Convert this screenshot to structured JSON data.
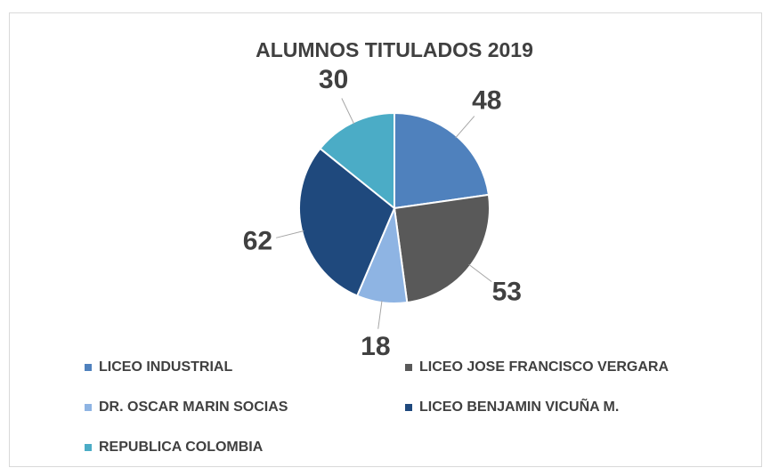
{
  "chart_data": {
    "type": "pie",
    "title": "ALUMNOS TITULADOS 2019",
    "categories": [
      "LICEO INDUSTRIAL",
      "LICEO JOSE FRANCISCO VERGARA",
      "DR.  OSCAR MARIN SOCIAS",
      "LICEO BENJAMIN VICUÑA  M.",
      "REPUBLICA COLOMBIA"
    ],
    "values": [
      48,
      53,
      18,
      62,
      30
    ],
    "colors": [
      "#4f81bd",
      "#595959",
      "#8eb4e3",
      "#1f497d",
      "#4bacc6"
    ],
    "legend": "bottom"
  }
}
